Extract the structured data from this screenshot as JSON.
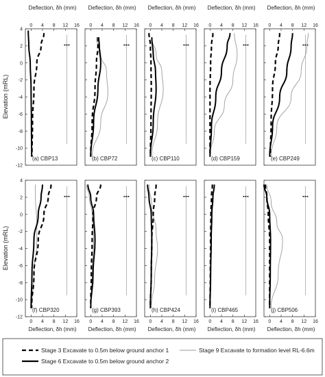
{
  "figure": {
    "x_axis_label_top": "Deflection, δh (mm)",
    "x_axis_label_bottom": "Deflection, δh (mm)",
    "y_axis_label": "Elevation (mRL)",
    "x_ticks": [
      "0",
      "4",
      "8",
      "12",
      "16"
    ],
    "y_ticks": [
      "4",
      "2",
      "0",
      "-2",
      "-4",
      "-6",
      "-8",
      "-10",
      "-12"
    ]
  },
  "legend": {
    "stage3": "Stage 3 Excavate to 0.5m below ground anchor 1",
    "stage6": "Stage 6 Excavate to 0.5m below ground anchor 2",
    "stage9": "Stage 9 Excavate to formation level RL-6.6m"
  },
  "colors": {
    "stage3": "#000000",
    "stage6": "#000000",
    "stage9": "#9a9a9a",
    "axis": "#333333"
  },
  "chart_data": [
    {
      "type": "line",
      "panel": "(a) CBP13",
      "xlim": [
        -2,
        16
      ],
      "ylim": [
        -12,
        4
      ],
      "xlabel": "Deflection, δh (mm)",
      "ylabel": "Elevation (mRL)",
      "series": [
        {
          "name": "Stage 3",
          "x": [
            4.5,
            3.5,
            2.0,
            1.0,
            0.5,
            0.3
          ],
          "y": [
            3.5,
            2,
            0,
            -3,
            -7,
            -11
          ]
        },
        {
          "name": "Stage 6",
          "x": [
            -1,
            -0.8,
            -0.3,
            0,
            0.1,
            0.2
          ],
          "y": [
            3.8,
            2,
            0,
            -3,
            -7,
            -11
          ]
        },
        {
          "name": "Stage 9",
          "x": [
            -1,
            -0.8,
            -0.3,
            0,
            0.1,
            0.2
          ],
          "y": [
            3.8,
            2,
            0,
            -3,
            -7,
            -11
          ]
        }
      ]
    },
    {
      "type": "line",
      "panel": "(b) CBP72",
      "xlim": [
        -2,
        16
      ],
      "ylim": [
        -12,
        4
      ],
      "xlabel": "Deflection, δh (mm)",
      "ylabel": "Elevation (mRL)",
      "series": [
        {
          "name": "Stage 3",
          "x": [
            2.5,
            2.5,
            2.0,
            1.5,
            0.5,
            0
          ],
          "y": [
            3,
            2,
            0,
            -3,
            -7,
            -11
          ]
        },
        {
          "name": "Stage 6",
          "x": [
            2.8,
            3.0,
            3.5,
            2.5,
            1.0,
            0
          ],
          "y": [
            3,
            2,
            0,
            -3,
            -7,
            -11
          ]
        },
        {
          "name": "Stage 9",
          "x": [
            2.0,
            3.5,
            5.5,
            6.0,
            3.5,
            0.5
          ],
          "y": [
            3,
            1,
            -1,
            -3.5,
            -7,
            -11
          ]
        }
      ]
    },
    {
      "type": "line",
      "panel": "(c) CBP110",
      "xlim": [
        -2,
        16
      ],
      "ylim": [
        -12,
        4
      ],
      "xlabel": "Deflection, δh (mm)",
      "ylabel": "Elevation (mRL)",
      "series": [
        {
          "name": "Stage 3",
          "x": [
            -0.5,
            0,
            0.2,
            0.3,
            0.2,
            0
          ],
          "y": [
            3.5,
            2,
            0,
            -3,
            -7,
            -11
          ]
        },
        {
          "name": "Stage 6",
          "x": [
            0.5,
            1.0,
            1.8,
            2.0,
            1.0,
            0
          ],
          "y": [
            3,
            1,
            -1,
            -3,
            -7,
            -11
          ]
        },
        {
          "name": "Stage 9",
          "x": [
            0.5,
            2.0,
            4.0,
            4.5,
            2.5,
            0.5
          ],
          "y": [
            3,
            1,
            -1,
            -3,
            -7,
            -11
          ]
        }
      ]
    },
    {
      "type": "line",
      "panel": "(d) CBP159",
      "xlim": [
        -2,
        16
      ],
      "ylim": [
        -12,
        4
      ],
      "xlabel": "Deflection, δh (mm)",
      "ylabel": "Elevation (mRL)",
      "series": [
        {
          "name": "Stage 3",
          "x": [
            1.0,
            0.5,
            0.2,
            0,
            0,
            0
          ],
          "y": [
            3.5,
            2,
            0,
            -3,
            -7,
            -11
          ]
        },
        {
          "name": "Stage 6",
          "x": [
            7.0,
            6.0,
            4.0,
            2.0,
            0.5,
            0
          ],
          "y": [
            3.5,
            2,
            -1,
            -4,
            -7.5,
            -11
          ]
        },
        {
          "name": "Stage 9",
          "x": [
            8.5,
            9.5,
            8.0,
            5.0,
            1.5,
            0
          ],
          "y": [
            3.5,
            1,
            -2,
            -5,
            -8,
            -11
          ]
        }
      ]
    },
    {
      "type": "line",
      "panel": "(e) CBP249",
      "xlim": [
        -2,
        16
      ],
      "ylim": [
        -12,
        4
      ],
      "xlabel": "Deflection, δh (mm)",
      "ylabel": "Elevation (mRL)",
      "series": [
        {
          "name": "Stage 3",
          "x": [
            3.5,
            3.0,
            2.0,
            1.0,
            0.5,
            0.2
          ],
          "y": [
            3.5,
            2,
            0,
            -3,
            -7,
            -11
          ]
        },
        {
          "name": "Stage 6",
          "x": [
            8.0,
            7.5,
            6.0,
            3.5,
            1.0,
            0
          ],
          "y": [
            3.5,
            2,
            -1,
            -4,
            -7.5,
            -11
          ]
        },
        {
          "name": "Stage 9",
          "x": [
            13.5,
            13.0,
            11.0,
            7.5,
            2.5,
            0.5
          ],
          "y": [
            3.5,
            2,
            -1,
            -4,
            -7.5,
            -11
          ]
        }
      ]
    },
    {
      "type": "line",
      "panel": "(f) CBP320",
      "xlim": [
        -2,
        16
      ],
      "ylim": [
        -12,
        4
      ],
      "xlabel": "Deflection, δh (mm)",
      "ylabel": "Elevation (mRL)",
      "series": [
        {
          "name": "Stage 3",
          "x": [
            7.0,
            6.0,
            4.5,
            2.5,
            1.0,
            0.2
          ],
          "y": [
            3.5,
            2,
            0,
            -3,
            -7,
            -11
          ]
        },
        {
          "name": "Stage 6",
          "x": [
            4.0,
            3.5,
            2.5,
            1.0,
            0.3,
            0
          ],
          "y": [
            3.5,
            2,
            0,
            -3,
            -7,
            -11
          ]
        },
        {
          "name": "Stage 9",
          "x": [
            1.5,
            1.5,
            2.0,
            2.0,
            1.0,
            0.2
          ],
          "y": [
            3.5,
            2,
            -1,
            -3,
            -7,
            -11
          ]
        }
      ]
    },
    {
      "type": "line",
      "panel": "(g) CBP393",
      "xlim": [
        -2,
        16
      ],
      "ylim": [
        -12,
        4
      ],
      "xlabel": "Deflection, δh (mm)",
      "ylabel": "Elevation (mRL)",
      "series": [
        {
          "name": "Stage 3",
          "x": [
            3.5,
            2.0,
            0.8,
            0.5,
            0.2,
            0
          ],
          "y": [
            3.5,
            2,
            0,
            -3,
            -7,
            -11
          ]
        },
        {
          "name": "Stage 6",
          "x": [
            -1.0,
            0,
            1.0,
            1.5,
            0.8,
            0
          ],
          "y": [
            3.5,
            2,
            0,
            -3,
            -7,
            -11
          ]
        },
        {
          "name": "Stage 9",
          "x": [
            -1.5,
            -0.5,
            0.5,
            1.0,
            0.5,
            0
          ],
          "y": [
            3.5,
            2,
            0,
            -3,
            -7,
            -11
          ]
        }
      ]
    },
    {
      "type": "line",
      "panel": "(h) CBP424",
      "xlim": [
        -2,
        16
      ],
      "ylim": [
        -12,
        4
      ],
      "xlabel": "Deflection, δh (mm)",
      "ylabel": "Elevation (mRL)",
      "series": [
        {
          "name": "Stage 3",
          "x": [
            2.0,
            1.5,
            1.0,
            0.5,
            0.3,
            0
          ],
          "y": [
            3.5,
            2,
            0,
            -3,
            -7,
            -11
          ]
        },
        {
          "name": "Stage 6",
          "x": [
            -1.0,
            -0.5,
            0.3,
            0.5,
            0.3,
            0
          ],
          "y": [
            3.5,
            2,
            0,
            -3,
            -7,
            -11
          ]
        },
        {
          "name": "Stage 9",
          "x": [
            -0.5,
            0.5,
            2.0,
            2.5,
            1.5,
            0.3
          ],
          "y": [
            3.5,
            1,
            -2,
            -4,
            -7.5,
            -11
          ]
        }
      ]
    },
    {
      "type": "line",
      "panel": "(i) CBP465",
      "xlim": [
        -2,
        16
      ],
      "ylim": [
        -12,
        4
      ],
      "xlabel": "Deflection, δh (mm)",
      "ylabel": "Elevation (mRL)",
      "series": [
        {
          "name": "Stage 3",
          "x": [
            0.8,
            0.5,
            0.3,
            0.2,
            0.1,
            0
          ],
          "y": [
            3.5,
            2,
            0,
            -3,
            -7,
            -11
          ]
        },
        {
          "name": "Stage 6",
          "x": [
            1.5,
            1.0,
            0.6,
            0.4,
            0.2,
            0
          ],
          "y": [
            3.5,
            2,
            0,
            -3,
            -7,
            -11
          ]
        },
        {
          "name": "Stage 9",
          "x": [
            1.5,
            1.0,
            0.8,
            0.5,
            0.3,
            0
          ],
          "y": [
            3.5,
            2,
            0,
            -3,
            -7,
            -11
          ]
        }
      ]
    },
    {
      "type": "line",
      "panel": "(j) CBP506",
      "xlim": [
        -2,
        16
      ],
      "ylim": [
        -12,
        4
      ],
      "xlabel": "Deflection, δh (mm)",
      "ylabel": "Elevation (mRL)",
      "series": [
        {
          "name": "Stage 3",
          "x": [
            -1.5,
            -1.0,
            -0.5,
            0,
            0,
            0
          ],
          "y": [
            3.5,
            2,
            0,
            -3,
            -7,
            -11
          ]
        },
        {
          "name": "Stage 6",
          "x": [
            -2.0,
            -1.0,
            0,
            0.3,
            0.2,
            0
          ],
          "y": [
            3.5,
            2,
            0,
            -3,
            -7,
            -11
          ]
        },
        {
          "name": "Stage 9",
          "x": [
            -1.0,
            0.5,
            2.5,
            4.5,
            3.0,
            0.5
          ],
          "y": [
            3.5,
            1.5,
            -1,
            -3,
            -7,
            -11
          ]
        }
      ]
    }
  ]
}
